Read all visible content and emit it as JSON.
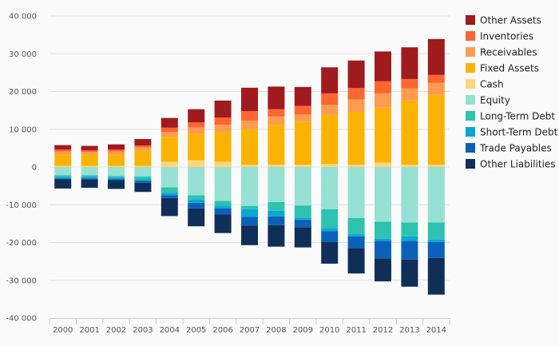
{
  "chart_data": {
    "type": "bar",
    "stacked": true,
    "categories": [
      "2000",
      "2001",
      "2002",
      "2003",
      "2004",
      "2005",
      "2006",
      "2007",
      "2008",
      "2009",
      "2010",
      "2011",
      "2012",
      "2013",
      "2014"
    ],
    "ylim": [
      -40000,
      40000
    ],
    "yticks": [
      -40000,
      -30000,
      -20000,
      -10000,
      0,
      10000,
      20000,
      30000,
      40000
    ],
    "ytick_labels": [
      "-40 000",
      "-30 000",
      "-20 000",
      "-10 000",
      "0",
      "10 000",
      "20 000",
      "30 000",
      "40 000"
    ],
    "grid": true,
    "legend_position": "right",
    "positive_series": [
      {
        "name": "Cash",
        "color": "#fdd57e",
        "values": [
          300,
          300,
          300,
          300,
          1400,
          1800,
          1400,
          600,
          600,
          600,
          800,
          600,
          1200,
          600,
          600
        ]
      },
      {
        "name": "Fixed Assets",
        "color": "#fbb303",
        "values": [
          3000,
          3000,
          3000,
          4000,
          6600,
          7000,
          7800,
          9400,
          10600,
          11500,
          13000,
          14000,
          14500,
          17000,
          18500
        ]
      },
      {
        "name": "Receivables",
        "color": "#fd9c50",
        "values": [
          800,
          700,
          800,
          900,
          1300,
          1700,
          2000,
          2300,
          2200,
          1800,
          2700,
          3300,
          3800,
          3200,
          3200
        ]
      },
      {
        "name": "Inventories",
        "color": "#fe6530",
        "values": [
          500,
          400,
          500,
          500,
          1100,
          1300,
          1900,
          2500,
          1900,
          2300,
          3000,
          3000,
          3200,
          2500,
          2100
        ]
      },
      {
        "name": "Other Assets",
        "color": "#a01b1e",
        "values": [
          1200,
          1200,
          1400,
          1700,
          2600,
          3500,
          4500,
          6200,
          6000,
          5000,
          6900,
          7300,
          7900,
          8400,
          9500
        ]
      }
    ],
    "negative_series": [
      {
        "name": "Equity",
        "color": "#96e0d4",
        "values": [
          -2200,
          -2200,
          -2400,
          -2500,
          -5400,
          -7500,
          -9000,
          -10300,
          -9300,
          -10200,
          -11200,
          -13500,
          -14500,
          -14700,
          -14700
        ]
      },
      {
        "name": "Long-Term Debt",
        "color": "#2ec2b0",
        "values": [
          -400,
          -400,
          -400,
          -700,
          -1400,
          -1100,
          -1200,
          -900,
          -2300,
          -3200,
          -5100,
          -4300,
          -4500,
          -3700,
          -4500
        ]
      },
      {
        "name": "Short-Term Debt",
        "color": "#0ba7d4",
        "values": [
          -400,
          -400,
          -400,
          -500,
          -700,
          -900,
          -800,
          -2000,
          -1500,
          -600,
          -700,
          -600,
          -600,
          -1200,
          -700
        ]
      },
      {
        "name": "Trade Payables",
        "color": "#0b61b7",
        "values": [
          -200,
          -300,
          -300,
          -500,
          -700,
          -1500,
          -1600,
          -2300,
          -2300,
          -2000,
          -2900,
          -3100,
          -4600,
          -4900,
          -4200
        ]
      },
      {
        "name": "Other Liabilities",
        "color": "#0f2f59",
        "values": [
          -2500,
          -2200,
          -2300,
          -2400,
          -4800,
          -4700,
          -4900,
          -5200,
          -5700,
          -5300,
          -5700,
          -6700,
          -6100,
          -7200,
          -9700
        ]
      }
    ],
    "legend": [
      {
        "name": "Other Assets",
        "color": "#a01b1e"
      },
      {
        "name": "Inventories",
        "color": "#fe6530"
      },
      {
        "name": "Receivables",
        "color": "#fd9c50"
      },
      {
        "name": "Fixed Assets",
        "color": "#fbb303"
      },
      {
        "name": "Cash",
        "color": "#fdd57e"
      },
      {
        "name": "Equity",
        "color": "#96e0d4"
      },
      {
        "name": "Long-Term Debt",
        "color": "#2ec2b0"
      },
      {
        "name": "Short-Term Debt",
        "color": "#0ba7d4"
      },
      {
        "name": "Trade Payables",
        "color": "#0b61b7"
      },
      {
        "name": "Other Liabilities",
        "color": "#0f2f59"
      }
    ]
  }
}
